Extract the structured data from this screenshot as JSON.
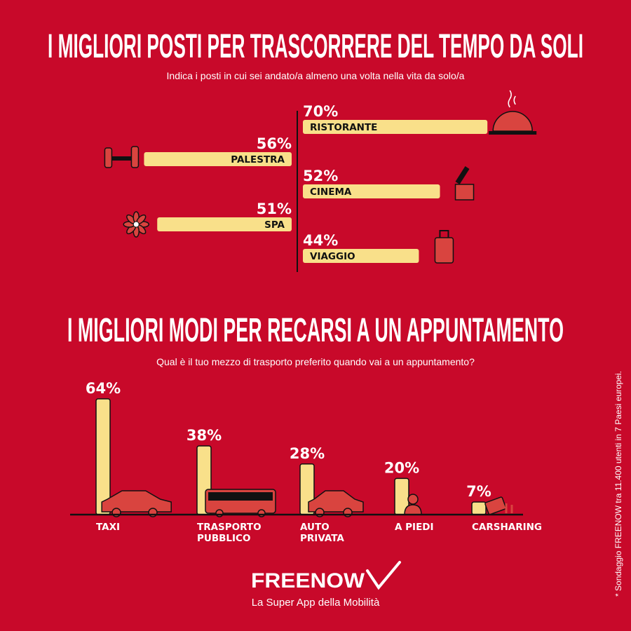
{
  "colors": {
    "background": "#C8092A",
    "bar": "#F9E08A",
    "icon": "#D9443F",
    "ink": "#111111"
  },
  "chart_data": [
    {
      "type": "bar",
      "orientation": "horizontal",
      "title": "I MIGLIORI POSTI PER TRASCORRERE DEL TEMPO DA SOLI",
      "subtitle": "Indica i posti in cui sei andato/a almeno una volta nella vita da solo/a",
      "unit": "%",
      "categories": [
        "RISTORANTE",
        "PALESTRA",
        "CINEMA",
        "SPA",
        "VIAGGIO"
      ],
      "values": [
        70,
        56,
        52,
        51,
        44
      ],
      "labels": [
        "70%",
        "56%",
        "52%",
        "51%",
        "44%"
      ],
      "sides": [
        "right",
        "left",
        "right",
        "left",
        "right"
      ],
      "icons": [
        "cloche-icon",
        "dumbbell-icon",
        "clapperboard-icon",
        "flower-icon",
        "suitcase-icon"
      ]
    },
    {
      "type": "bar",
      "orientation": "vertical",
      "title": "I MIGLIORI MODI PER RECARSI A UN APPUNTAMENTO",
      "subtitle": "Qual è il tuo mezzo di trasporto preferito quando vai a un appuntamento?",
      "unit": "%",
      "categories": [
        [
          "TAXI"
        ],
        [
          "TRASPORTO",
          "PUBBLICO"
        ],
        [
          "AUTO",
          "PRIVATA"
        ],
        [
          "A PIEDI"
        ],
        [
          "CARSHARING"
        ]
      ],
      "values": [
        64,
        38,
        28,
        20,
        7
      ],
      "labels": [
        "64%",
        "38%",
        "28%",
        "20%",
        "7%"
      ],
      "icons": [
        "taxi-icon",
        "bus-icon",
        "car-icon",
        "person-icon",
        "card-keys-icon"
      ]
    }
  ],
  "brand": {
    "logo": "FREENOW",
    "tagline": "La Super App della Mobilità"
  },
  "footnote": "* Sondaggio FREENOW tra 11.400 utenti in 7 Paesi europei."
}
